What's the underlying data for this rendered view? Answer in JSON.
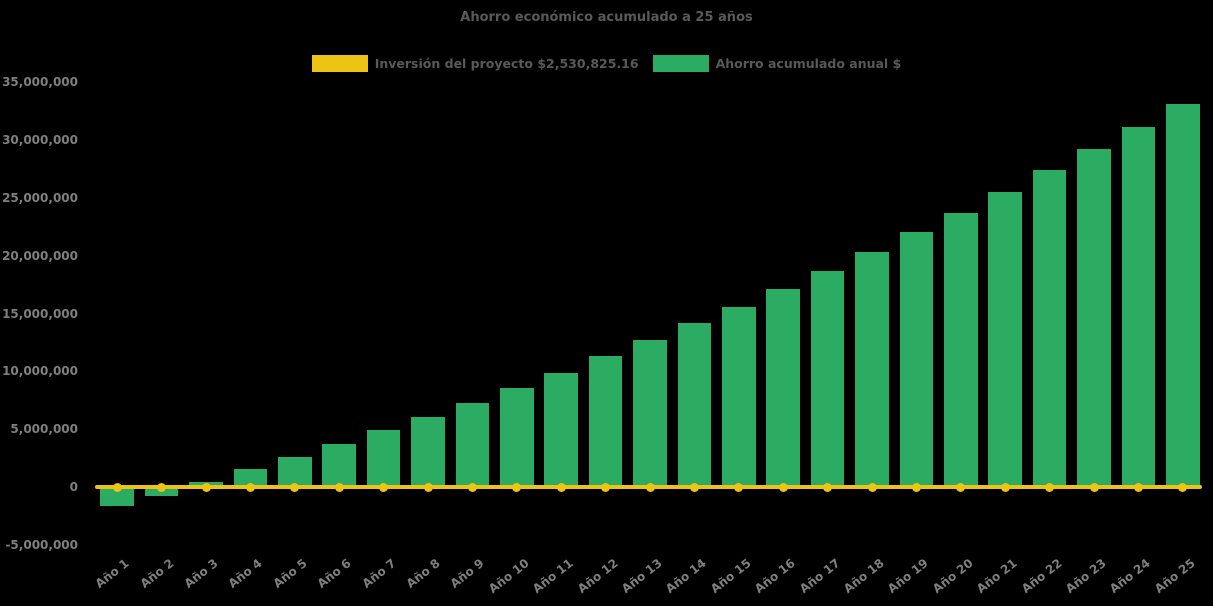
{
  "colors": {
    "background": "#000000",
    "bar": "#2bac62",
    "line": "#eec414",
    "title_text": "#595959",
    "legend_text": "#595959",
    "axis_text": "#7f7f7f"
  },
  "legend": [
    {
      "label": "Inversión del proyecto $2,530,825.16",
      "color": "#eec414",
      "series_type": "line"
    },
    {
      "label": "Ahorro acumulado anual $",
      "color": "#2bac62",
      "series_type": "bar"
    }
  ],
  "chart_data": {
    "type": "bar",
    "title": "Ahorro económico acumulado a 25 años",
    "xlabel": "",
    "ylabel": "",
    "grid": false,
    "legend_position": "top",
    "background": "#000000",
    "categories": [
      "Año 1",
      "Año 2",
      "Año 3",
      "Año 4",
      "Año 5",
      "Año 6",
      "Año 7",
      "Año 8",
      "Año 9",
      "Año 10",
      "Año 11",
      "Año 12",
      "Año 13",
      "Año 14",
      "Año 15",
      "Año 16",
      "Año 17",
      "Año 18",
      "Año 19",
      "Año 20",
      "Año 21",
      "Año 22",
      "Año 23",
      "Año 24",
      "Año 25"
    ],
    "series": [
      {
        "name": "Ahorro acumulado anual $",
        "type": "bar",
        "color": "#2bac62",
        "values": [
          -1600000,
          -800000,
          400000,
          1600000,
          2600000,
          3700000,
          4900000,
          6100000,
          7300000,
          8600000,
          9900000,
          11300000,
          12700000,
          14200000,
          15600000,
          17100000,
          18700000,
          20300000,
          22000000,
          23700000,
          25500000,
          27400000,
          29200000,
          31100000,
          33100000
        ]
      },
      {
        "name": "Inversión del proyecto $2,530,825.16",
        "type": "line",
        "color": "#eec414",
        "marker": "circle",
        "marker_size": 9,
        "values": [
          0,
          0,
          0,
          0,
          0,
          0,
          0,
          0,
          0,
          0,
          0,
          0,
          0,
          0,
          0,
          0,
          0,
          0,
          0,
          0,
          0,
          0,
          0,
          0,
          0
        ]
      }
    ],
    "ylim": [
      -5000000,
      35000000
    ],
    "yticks": [
      {
        "value": 35000000,
        "label": "35,000,000"
      },
      {
        "value": 30000000,
        "label": "30,000,000"
      },
      {
        "value": 25000000,
        "label": "25,000,000"
      },
      {
        "value": 20000000,
        "label": "20,000,000"
      },
      {
        "value": 15000000,
        "label": "15,000,000"
      },
      {
        "value": 10000000,
        "label": "10,000,000"
      },
      {
        "value": 5000000,
        "label": "5,000,000"
      },
      {
        "value": 0,
        "label": "0"
      },
      {
        "value": -5000000,
        "label": "-5,000,000"
      }
    ]
  }
}
